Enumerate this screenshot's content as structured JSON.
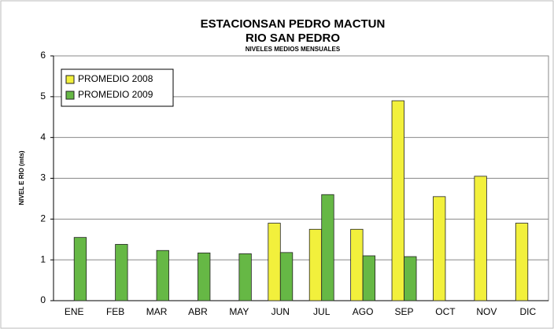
{
  "chart_data": {
    "type": "bar",
    "title": "ESTACIONSAN PEDRO MACTUN",
    "subtitle": "RIO SAN PEDRO",
    "annotation": "NIVELES MEDIOS MENSUALES",
    "y_label": "NIVEL E RIO (mts)",
    "categories": [
      "ENE",
      "FEB",
      "MAR",
      "ABR",
      "MAY",
      "JUN",
      "JUL",
      "AGO",
      "SEP",
      "OCT",
      "NOV",
      "DIC"
    ],
    "series": [
      {
        "name": "PROMEDIO 2008",
        "color": "#f2f03c",
        "values": [
          null,
          null,
          null,
          null,
          null,
          1.9,
          1.75,
          1.75,
          4.9,
          2.55,
          3.05,
          1.9
        ]
      },
      {
        "name": "PROMEDIO 2009",
        "color": "#66b845",
        "values": [
          1.55,
          1.38,
          1.23,
          1.17,
          1.15,
          1.18,
          2.6,
          1.1,
          1.08,
          null,
          null,
          null
        ]
      }
    ],
    "ylim": [
      0,
      6
    ],
    "yticks": [
      0,
      1,
      2,
      3,
      4,
      5,
      6
    ],
    "grid": true,
    "legend": "top-left"
  }
}
